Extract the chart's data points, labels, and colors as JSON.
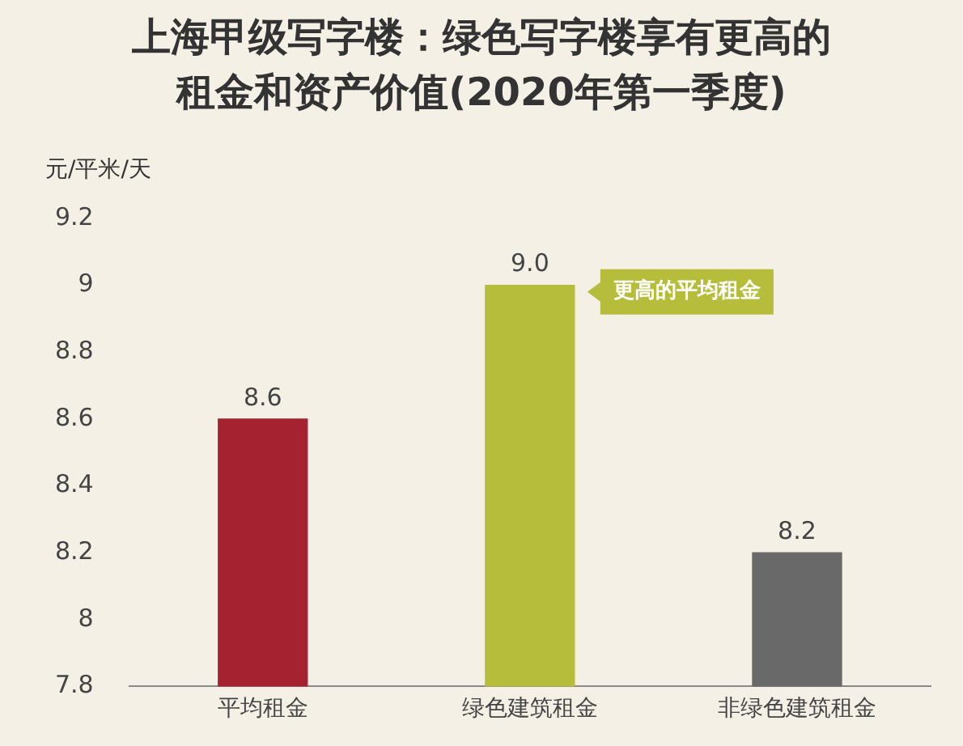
{
  "chart_data": {
    "type": "bar",
    "title": "上海甲级写字楼：绿色写字楼享有更高的租金和资产价值(2020年第一季度)",
    "ylabel": "元/平米/天",
    "categories": [
      "平均租金",
      "绿色建筑租金",
      "非绿色建筑租金"
    ],
    "values": [
      8.6,
      9.0,
      8.2
    ],
    "value_labels": [
      "8.6",
      "9.0",
      "8.2"
    ],
    "colors": [
      "#a52330",
      "#b5bd3a",
      "#696969"
    ],
    "ylim": [
      7.8,
      9.2
    ],
    "yticks": [
      7.8,
      8,
      8.2,
      8.4,
      8.6,
      8.8,
      9,
      9.2
    ],
    "grid": false,
    "legend": false,
    "annotations": [
      "更高的平均租金"
    ]
  }
}
